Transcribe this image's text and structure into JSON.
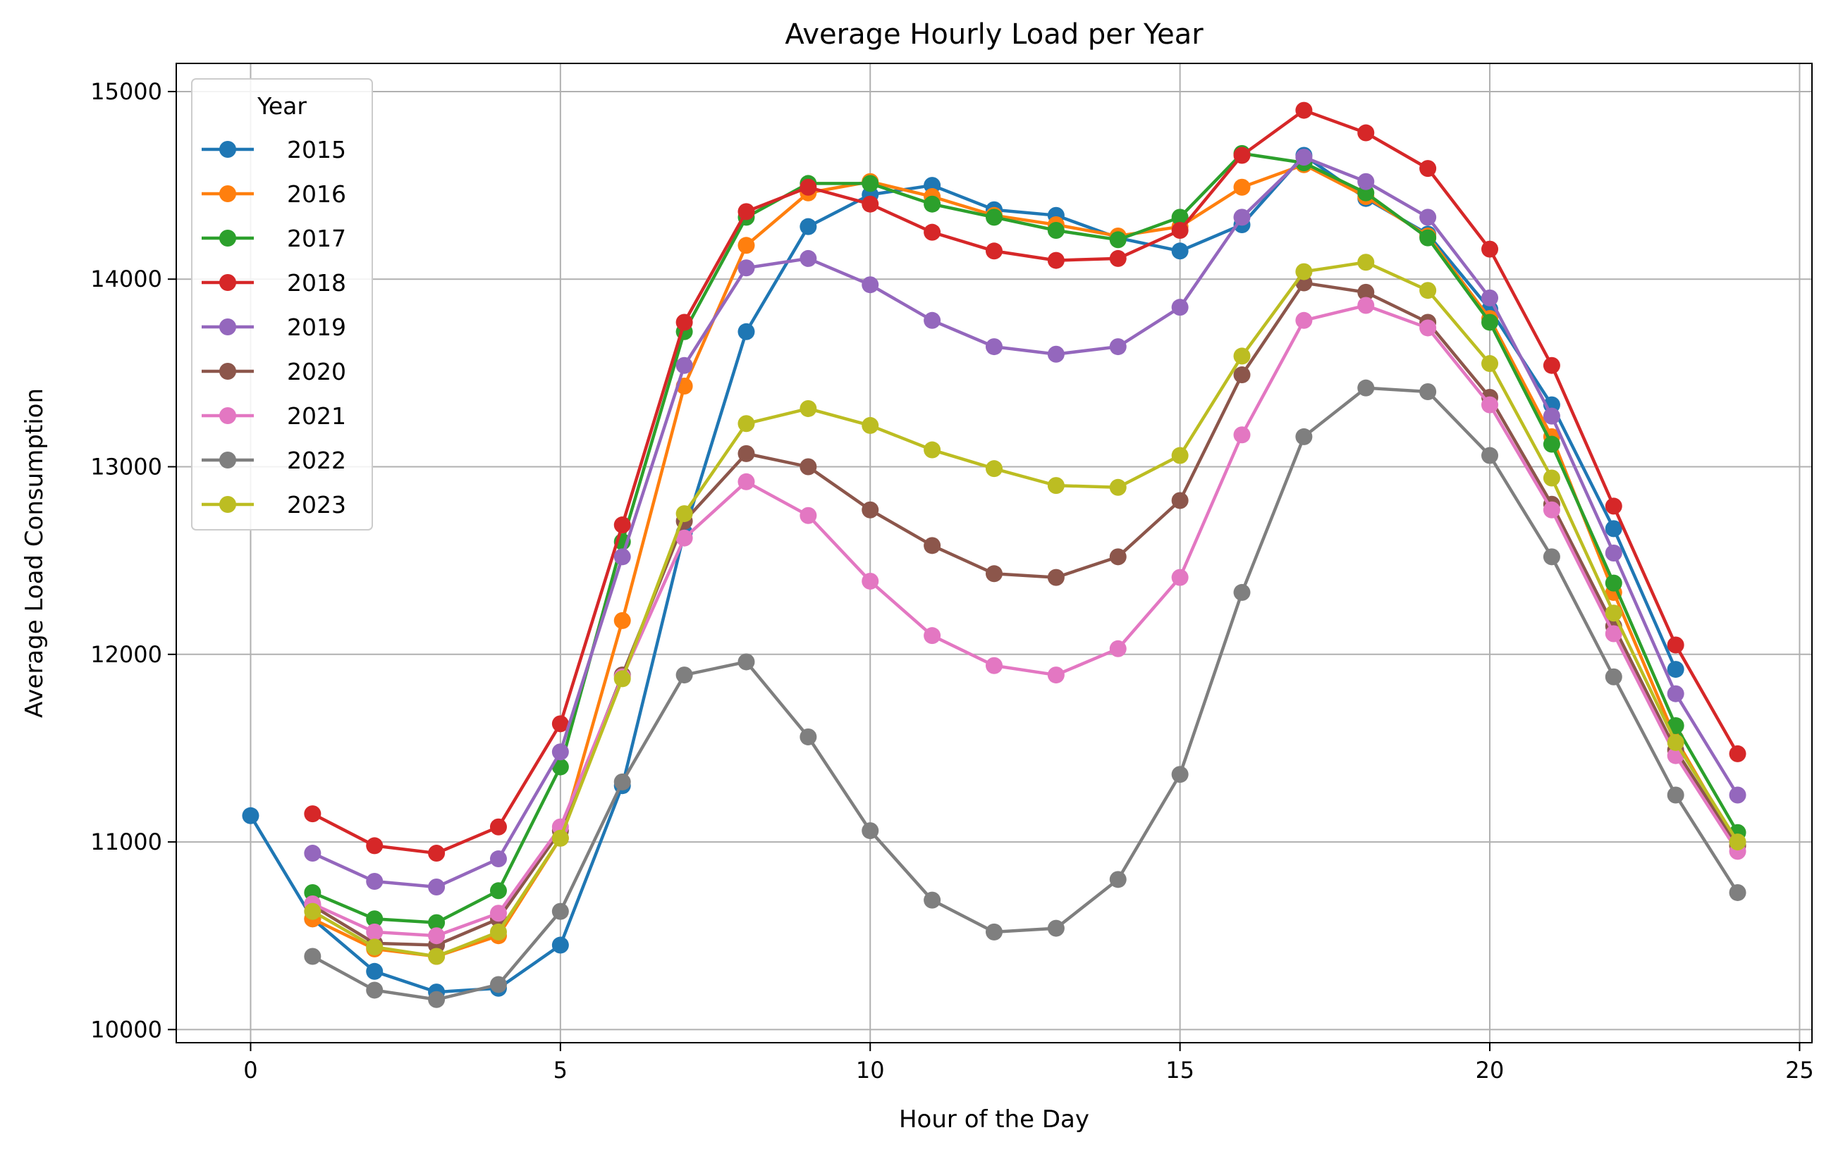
{
  "chart_data": {
    "type": "line",
    "title": "Average Hourly Load per Year",
    "xlabel": "Hour of the Day",
    "ylabel": "Average Load Consumption",
    "xlim": [
      -1.2,
      25.2
    ],
    "ylim": [
      9930,
      15150
    ],
    "xticks": [
      0,
      5,
      10,
      15,
      20,
      25
    ],
    "yticks": [
      10000,
      11000,
      12000,
      13000,
      14000,
      15000
    ],
    "grid": true,
    "legend": {
      "title": "Year",
      "placement": "upper-left"
    },
    "series": [
      {
        "name": "2015",
        "color": "#1f77b4",
        "x": [
          0,
          1,
          2,
          3,
          4,
          5,
          6,
          7,
          8,
          9,
          10,
          11,
          12,
          13,
          14,
          15,
          16,
          17,
          18,
          19,
          20,
          21,
          22,
          23
        ],
        "y": [
          11140,
          10590,
          10310,
          10200,
          10220,
          10450,
          11300,
          12650,
          13720,
          14280,
          14450,
          14500,
          14370,
          14340,
          14220,
          14150,
          14290,
          14660,
          14430,
          14240,
          13840,
          13330,
          12670,
          11920
        ]
      },
      {
        "name": "2016",
        "color": "#ff7f0e",
        "x": [
          1,
          2,
          3,
          4,
          5,
          6,
          7,
          8,
          9,
          10,
          11,
          12,
          13,
          14,
          15,
          16,
          17,
          18,
          19,
          20,
          21,
          22,
          23,
          24
        ],
        "y": [
          10590,
          10430,
          10390,
          10500,
          11020,
          12180,
          13430,
          14180,
          14460,
          14520,
          14440,
          14340,
          14290,
          14230,
          14280,
          14490,
          14610,
          14440,
          14230,
          13790,
          13160,
          12330,
          11550,
          10980
        ]
      },
      {
        "name": "2017",
        "color": "#2ca02c",
        "x": [
          1,
          2,
          3,
          4,
          5,
          6,
          7,
          8,
          9,
          10,
          11,
          12,
          13,
          14,
          15,
          16,
          17,
          18,
          19,
          20,
          21,
          22,
          23,
          24
        ],
        "y": [
          10730,
          10590,
          10570,
          10740,
          11400,
          12600,
          13720,
          14330,
          14510,
          14510,
          14400,
          14330,
          14260,
          14210,
          14330,
          14670,
          14620,
          14460,
          14220,
          13770,
          13120,
          12380,
          11620,
          11050
        ]
      },
      {
        "name": "2018",
        "color": "#d62728",
        "x": [
          1,
          2,
          3,
          4,
          5,
          6,
          7,
          8,
          9,
          10,
          11,
          12,
          13,
          14,
          15,
          16,
          17,
          18,
          19,
          20,
          21,
          22,
          23,
          24
        ],
        "y": [
          11150,
          10980,
          10940,
          11080,
          11630,
          12690,
          13770,
          14360,
          14490,
          14400,
          14250,
          14150,
          14100,
          14110,
          14260,
          14660,
          14900,
          14780,
          14590,
          14160,
          13540,
          12790,
          12050,
          11470
        ]
      },
      {
        "name": "2019",
        "color": "#9467bd",
        "x": [
          1,
          2,
          3,
          4,
          5,
          6,
          7,
          8,
          9,
          10,
          11,
          12,
          13,
          14,
          15,
          16,
          17,
          18,
          19,
          20,
          21,
          22,
          23,
          24
        ],
        "y": [
          10940,
          10790,
          10760,
          10910,
          11480,
          12520,
          13540,
          14060,
          14110,
          13970,
          13780,
          13640,
          13600,
          13640,
          13850,
          14330,
          14650,
          14520,
          14330,
          13900,
          13270,
          12540,
          11790,
          11250
        ]
      },
      {
        "name": "2020",
        "color": "#8c564b",
        "x": [
          1,
          2,
          3,
          4,
          5,
          6,
          7,
          8,
          9,
          10,
          11,
          12,
          13,
          14,
          15,
          16,
          17,
          18,
          19,
          20,
          21,
          22,
          23,
          24
        ],
        "y": [
          10660,
          10460,
          10450,
          10590,
          11060,
          11890,
          12710,
          13070,
          13000,
          12770,
          12580,
          12430,
          12410,
          12520,
          12820,
          13490,
          13980,
          13930,
          13770,
          13370,
          12800,
          12150,
          11490,
          10980
        ]
      },
      {
        "name": "2021",
        "color": "#e377c2",
        "x": [
          1,
          2,
          3,
          4,
          5,
          6,
          7,
          8,
          9,
          10,
          11,
          12,
          13,
          14,
          15,
          16,
          17,
          18,
          19,
          20,
          21,
          22,
          23,
          24
        ],
        "y": [
          10670,
          10520,
          10500,
          10620,
          11080,
          11880,
          12620,
          12920,
          12740,
          12390,
          12100,
          11940,
          11890,
          12030,
          12410,
          13170,
          13780,
          13860,
          13740,
          13330,
          12770,
          12110,
          11460,
          10950
        ]
      },
      {
        "name": "2022",
        "color": "#7f7f7f",
        "x": [
          1,
          2,
          3,
          4,
          5,
          6,
          7,
          8,
          9,
          10,
          11,
          12,
          13,
          14,
          15,
          16,
          17,
          18,
          19,
          20,
          21,
          22,
          23,
          24
        ],
        "y": [
          10390,
          10210,
          10160,
          10240,
          10630,
          11320,
          11890,
          11960,
          11560,
          11060,
          10690,
          10520,
          10540,
          10800,
          11360,
          12330,
          13160,
          13420,
          13400,
          13060,
          12520,
          11880,
          11250,
          10730
        ]
      },
      {
        "name": "2023",
        "color": "#bcbd22",
        "x": [
          1,
          2,
          3,
          4,
          5,
          6,
          7,
          8,
          9,
          10,
          11,
          12,
          13,
          14,
          15,
          16,
          17,
          18,
          19,
          20,
          21,
          22,
          23,
          24
        ],
        "y": [
          10630,
          10440,
          10390,
          10520,
          11020,
          11870,
          12750,
          13230,
          13310,
          13220,
          13090,
          12990,
          12900,
          12890,
          13060,
          13590,
          14040,
          14090,
          13940,
          13550,
          12940,
          12220,
          11530,
          11000
        ]
      }
    ]
  }
}
